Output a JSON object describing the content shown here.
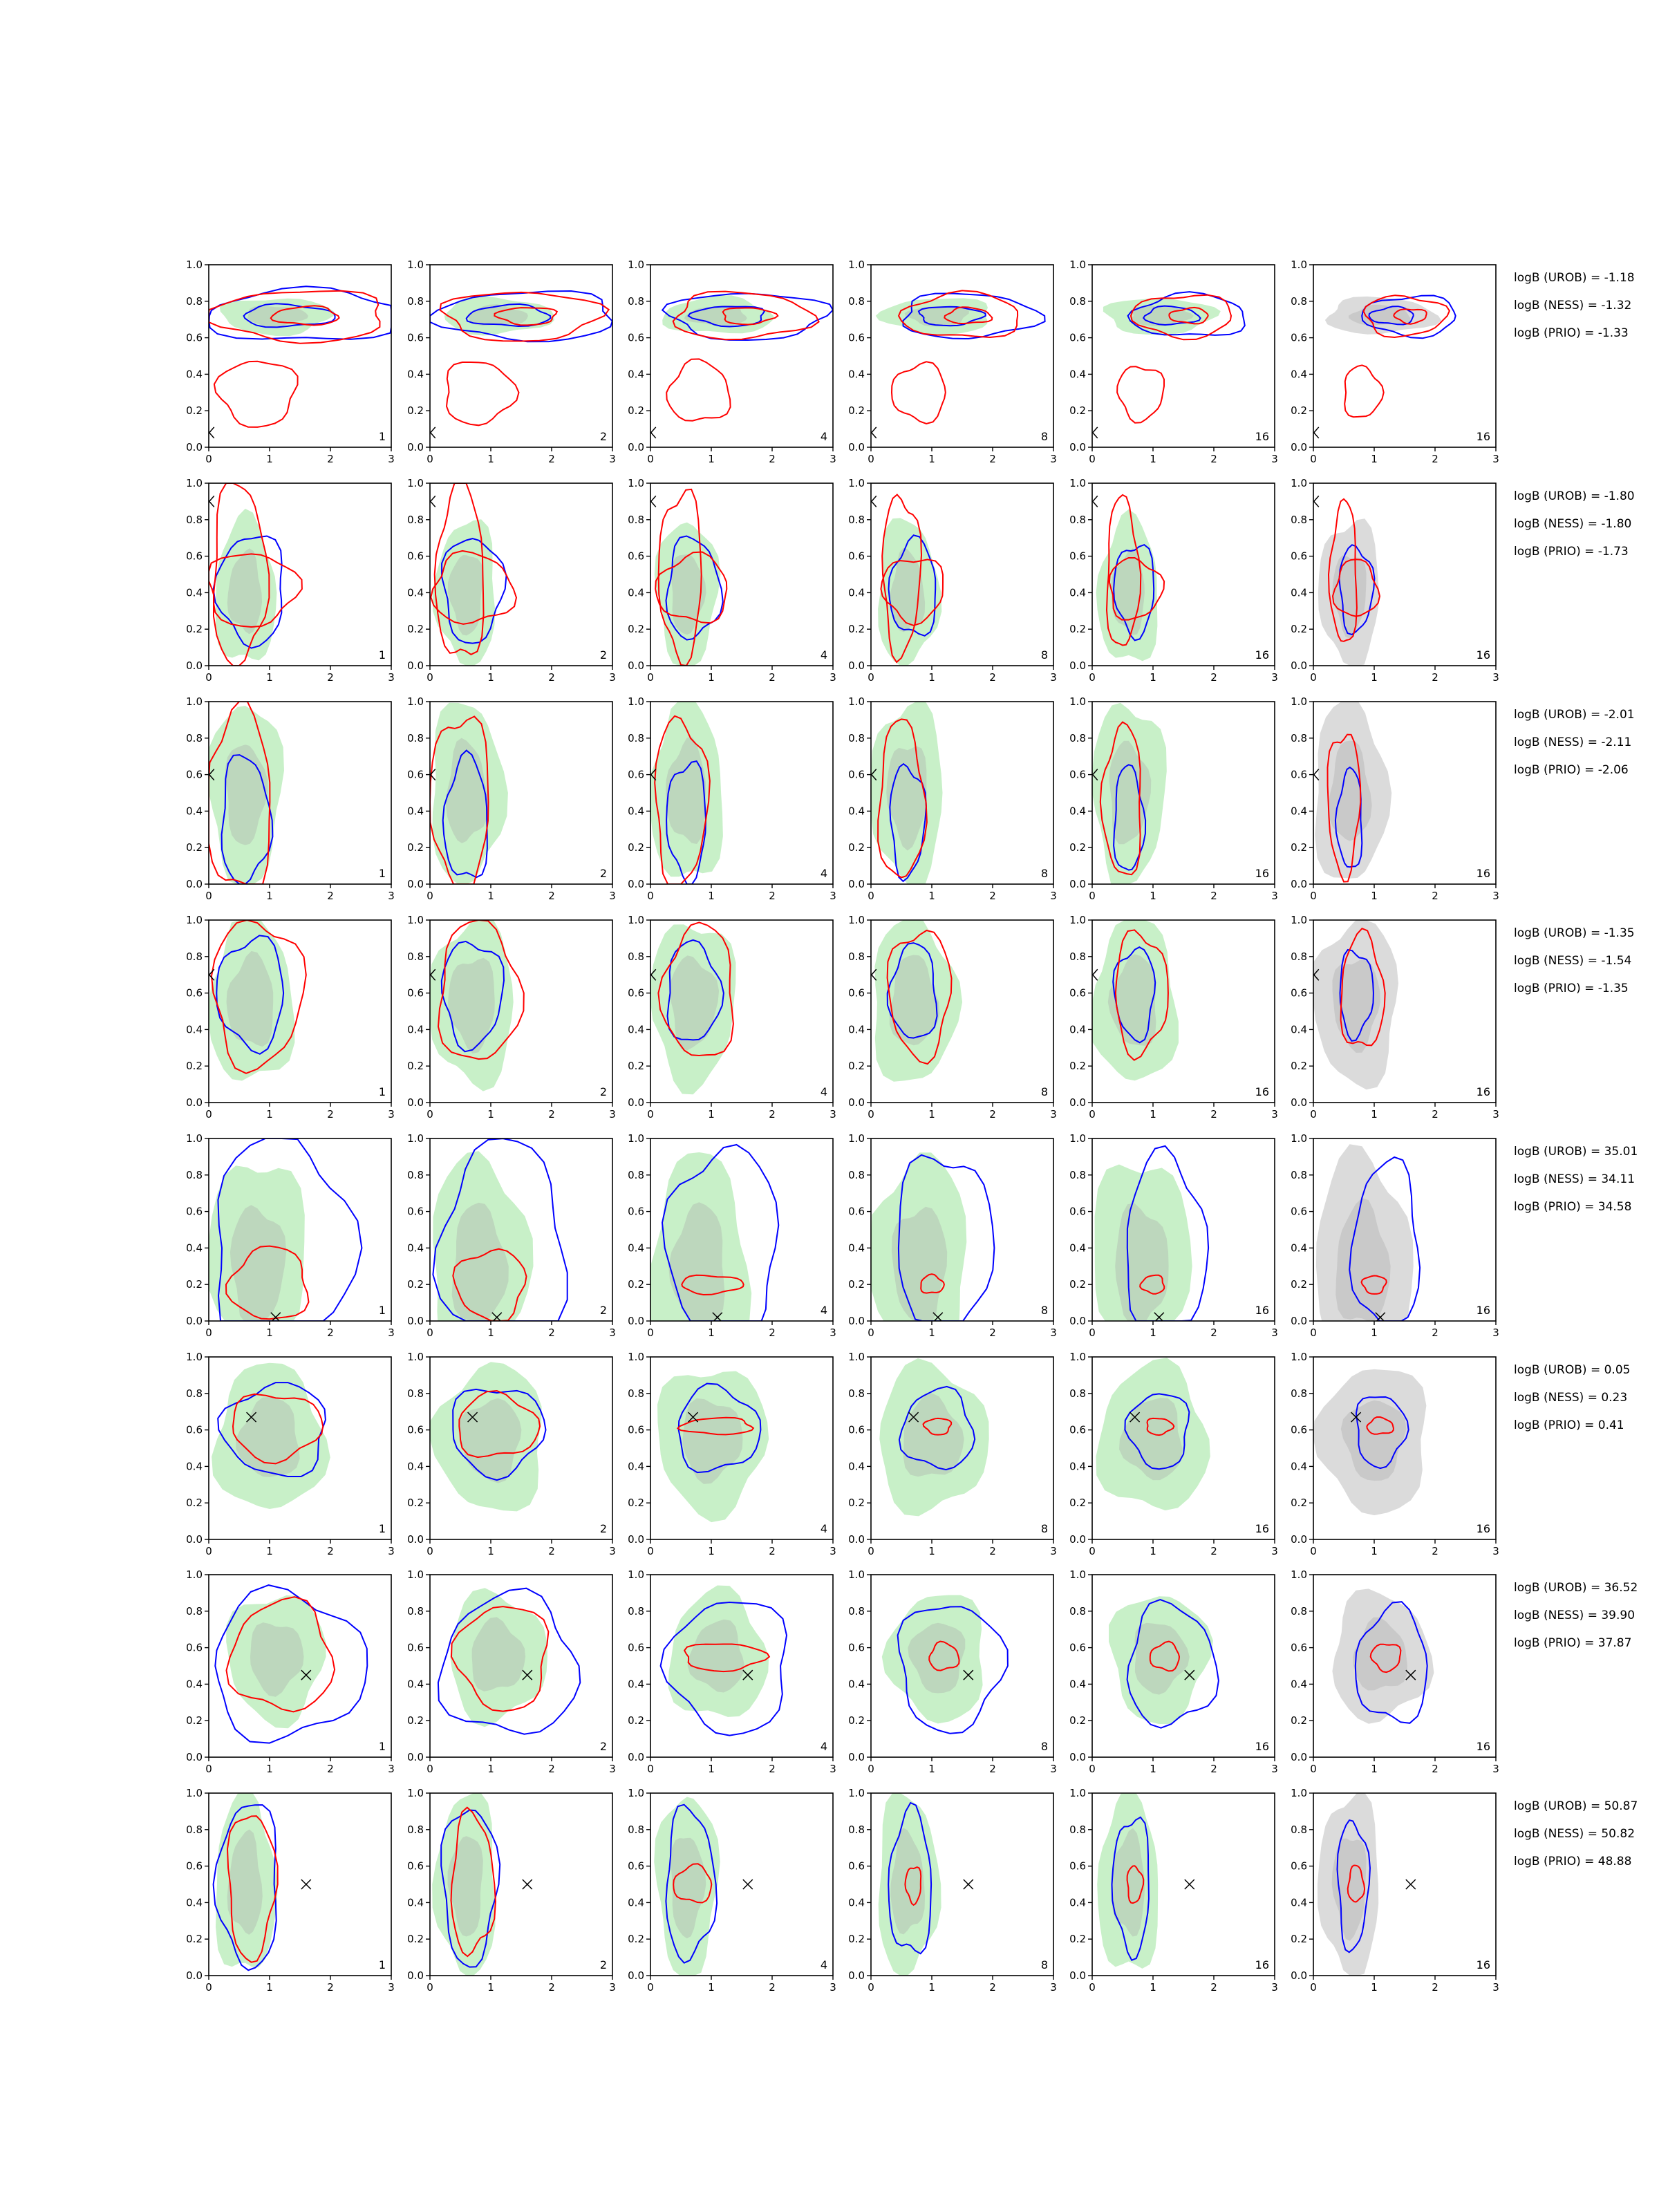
{
  "chart_data": {
    "type": "scatter",
    "description_free": true,
    "grid": false,
    "xlim": [
      0,
      3
    ],
    "ylim": [
      0,
      1
    ],
    "x_ticks": [
      "0",
      "1",
      "2",
      "3"
    ],
    "y_ticks": [
      "0.0",
      "0.2",
      "0.4",
      "0.6",
      "0.8",
      "1.0"
    ],
    "column_corner_labels": [
      "1",
      "2",
      "4",
      "8",
      "16",
      "16"
    ],
    "colors": {
      "blue": "#0000ff",
      "red": "#ff0000",
      "green": "#9be39b",
      "gray": "#bdbdbd"
    },
    "rows": [
      {
        "marker": [
          0.02,
          0.08
        ],
        "marker_shape": "left-angle",
        "logB": [
          "logB (UROB) = -1.18",
          "logB (NESS) = -1.32",
          "logB (PRIO) = -1.33"
        ],
        "green": [
          [
            1.1,
            0.72,
            0.9,
            0.1
          ]
        ],
        "blue": [
          [
            1.3,
            0.72,
            0.7,
            0.06
          ],
          [
            1.6,
            0.72,
            1.6,
            0.14
          ]
        ],
        "red": [
          [
            1.6,
            0.72,
            0.5,
            0.05
          ],
          [
            1.5,
            0.72,
            1.4,
            0.14
          ],
          [
            0.8,
            0.3,
            0.6,
            0.18
          ]
        ]
      },
      {
        "marker": [
          0.02,
          0.9
        ],
        "marker_shape": "left-angle",
        "logB": [
          "logB (UROB) = -1.80",
          "logB (NESS) = -1.80",
          "logB (PRIO) = -1.73"
        ],
        "green": [
          [
            0.6,
            0.4,
            0.5,
            0.4
          ]
        ],
        "blue": [
          [
            0.7,
            0.42,
            0.5,
            0.3
          ]
        ],
        "red": [
          [
            0.7,
            0.42,
            0.7,
            0.2
          ],
          [
            0.5,
            0.5,
            0.4,
            0.5
          ]
        ]
      },
      {
        "marker": [
          0.02,
          0.6
        ],
        "marker_shape": "left-angle",
        "logB": [
          "logB (UROB) = -2.01",
          "logB (NESS) = -2.11",
          "logB (PRIO) = -2.06"
        ],
        "green": [
          [
            0.6,
            0.5,
            0.6,
            0.5
          ]
        ],
        "blue": [
          [
            0.6,
            0.35,
            0.35,
            0.35
          ]
        ],
        "red": [
          [
            0.5,
            0.45,
            0.5,
            0.5
          ]
        ]
      },
      {
        "marker": [
          0.02,
          0.7
        ],
        "marker_shape": "left-angle",
        "logB": [
          "logB (UROB) = -1.35",
          "logB (NESS) = -1.54",
          "logB (PRIO) = -1.35"
        ],
        "green": [
          [
            0.7,
            0.55,
            0.7,
            0.45
          ]
        ],
        "blue": [
          [
            0.7,
            0.6,
            0.5,
            0.3
          ]
        ],
        "red": [
          [
            0.8,
            0.6,
            0.7,
            0.4
          ]
        ]
      },
      {
        "marker": [
          1.1,
          0.02
        ],
        "marker_shape": "x",
        "logB": [
          "logB (UROB) = 35.01",
          "logB (NESS) = 34.11",
          "logB (PRIO) = 34.58"
        ],
        "green": [
          [
            0.8,
            0.3,
            0.8,
            0.6
          ]
        ],
        "blue": [
          [
            1.2,
            0.4,
            1.1,
            0.6
          ]
        ],
        "red": [
          [
            1.0,
            0.2,
            0.6,
            0.2
          ]
        ]
      },
      {
        "marker": [
          0.7,
          0.67
        ],
        "marker_shape": "x",
        "logB": [
          "logB (UROB) = 0.05",
          "logB (NESS) = 0.23",
          "logB (PRIO) = 0.41"
        ],
        "green": [
          [
            1.0,
            0.55,
            0.9,
            0.4
          ]
        ],
        "blue": [
          [
            1.1,
            0.6,
            0.8,
            0.25
          ]
        ],
        "red": [
          [
            1.1,
            0.62,
            0.7,
            0.18
          ]
        ]
      },
      {
        "marker": [
          1.6,
          0.45
        ],
        "marker_shape": "x",
        "logB": [
          "logB (UROB) = 36.52",
          "logB (NESS) = 39.90",
          "logB (PRIO) = 37.87"
        ],
        "green": [
          [
            1.1,
            0.55,
            0.8,
            0.35
          ]
        ],
        "blue": [
          [
            1.3,
            0.5,
            1.2,
            0.4
          ]
        ],
        "red": [
          [
            1.2,
            0.55,
            0.8,
            0.3
          ]
        ]
      },
      {
        "marker": [
          1.6,
          0.5
        ],
        "marker_shape": "x",
        "logB": [
          "logB (UROB) = 50.87",
          "logB (NESS) = 50.82",
          "logB (PRIO) = 48.88"
        ],
        "green": [
          [
            0.6,
            0.5,
            0.5,
            0.5
          ]
        ],
        "blue": [
          [
            0.65,
            0.5,
            0.45,
            0.45
          ]
        ],
        "red": [
          [
            0.7,
            0.5,
            0.35,
            0.4
          ]
        ]
      }
    ]
  }
}
